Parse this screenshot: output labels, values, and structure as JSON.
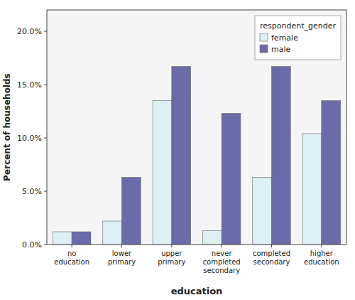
{
  "chart_data": {
    "type": "bar",
    "x_label": "education",
    "y_label": "Percent of households",
    "legend_title": "respondent_gender",
    "categories": [
      "no\neducation",
      "lower\nprimary",
      "upper\nprimary",
      "never\ncompleted\nsecondary",
      "completed\nsecondary",
      "higher\neducation"
    ],
    "series": [
      {
        "name": "female",
        "color": "#ddeef5",
        "values": [
          1.2,
          2.2,
          13.5,
          1.3,
          6.3,
          10.4
        ]
      },
      {
        "name": "male",
        "color": "#6b6baa",
        "values": [
          1.2,
          6.3,
          16.7,
          12.3,
          16.7,
          13.5
        ]
      }
    ],
    "ylim": [
      0,
      22.0
    ],
    "yticks": [
      {
        "value": 0.0,
        "label": "0.0%"
      },
      {
        "value": 5.0,
        "label": "5.0%"
      },
      {
        "value": 10.0,
        "label": "10.0%"
      },
      {
        "value": 15.0,
        "label": "15.0%"
      },
      {
        "value": 20.0,
        "label": "20.0%"
      }
    ],
    "grid": false,
    "legend": "upper-right"
  }
}
